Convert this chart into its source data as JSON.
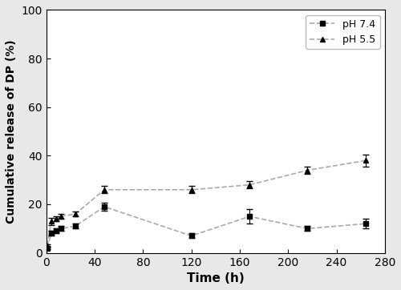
{
  "ph74_x": [
    1,
    4,
    8,
    12,
    24,
    48,
    120,
    168,
    216,
    264
  ],
  "ph74_y": [
    2,
    8,
    9,
    10,
    11,
    19,
    7,
    15,
    10,
    12
  ],
  "ph74_yerr": [
    0.5,
    1.0,
    1.0,
    1.0,
    1.0,
    1.5,
    1.0,
    3.0,
    1.0,
    2.0
  ],
  "ph55_x": [
    1,
    4,
    8,
    12,
    24,
    48,
    120,
    168,
    216,
    264
  ],
  "ph55_y": [
    3,
    13,
    14,
    15,
    16,
    26,
    26,
    28,
    34,
    38
  ],
  "ph55_yerr": [
    0.5,
    1.5,
    1.0,
    1.0,
    1.0,
    1.5,
    1.5,
    1.5,
    1.5,
    2.5
  ],
  "xlabel": "Time (h)",
  "ylabel": "Cumulative release of DP (%)",
  "xlim": [
    0,
    280
  ],
  "ylim": [
    0,
    100
  ],
  "xticks": [
    0,
    40,
    80,
    120,
    160,
    200,
    240,
    280
  ],
  "yticks": [
    0,
    20,
    40,
    60,
    80,
    100
  ],
  "line_color": "#aaaaaa",
  "marker_color": "#000000",
  "legend_labels": [
    "pH 7.4",
    "pH 5.5"
  ],
  "marker_ph74": "s",
  "marker_ph55": "^",
  "markersize": 5,
  "linewidth": 1.2,
  "capsize": 3,
  "fig_facecolor": "#e8e8e8",
  "axes_facecolor": "#ffffff"
}
